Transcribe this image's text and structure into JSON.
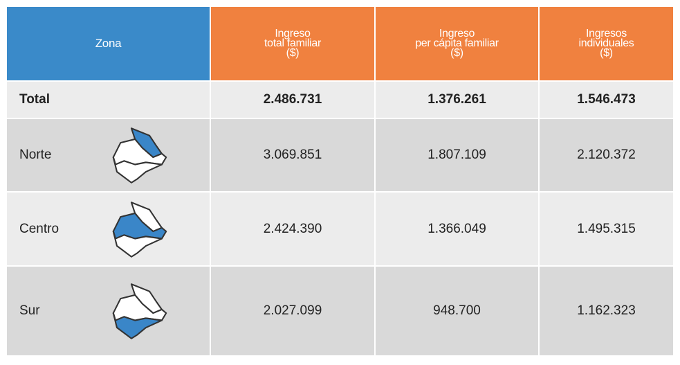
{
  "table": {
    "header": [
      "Zona",
      [
        "Ingreso",
        "total familiar",
        "($)"
      ],
      [
        "Ingreso",
        "per cápita familiar",
        "($)"
      ],
      [
        "Ingresos",
        "individuales",
        "($)"
      ]
    ],
    "rows": [
      [
        "Total",
        "2.486.731",
        "1.376.261",
        "1.546.473"
      ],
      [
        "Norte",
        "3.069.851",
        "1.807.109",
        "2.120.372"
      ],
      [
        "Centro",
        "2.424.390",
        "1.366.049",
        "1.495.315"
      ],
      [
        "Sur",
        "2.027.099",
        "948.700",
        "1.162.323"
      ]
    ]
  }
}
